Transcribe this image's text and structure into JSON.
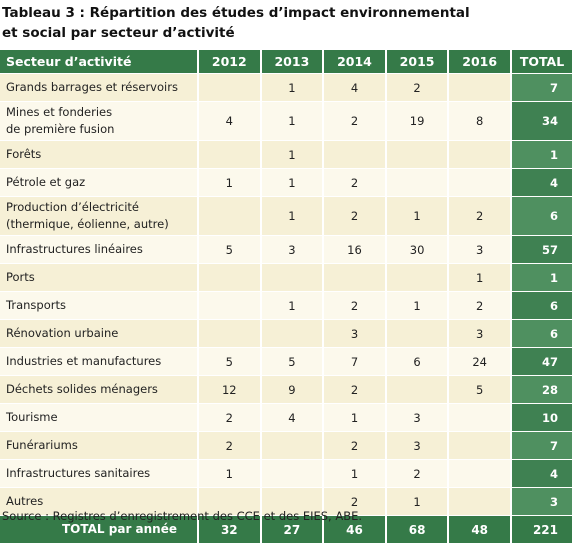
{
  "title": "Tableau 3 : Répartition des études d’impact environnemental\net social par secteur d’activité",
  "table": {
    "header": [
      "Secteur d’activité",
      "2012",
      "2013",
      "2014",
      "2015",
      "2016",
      "TOTAL"
    ],
    "rows": [
      [
        "Grands barrages et réservoirs",
        null,
        1,
        4,
        2,
        null,
        7
      ],
      [
        "Mines et fonderies\nde première fusion",
        4,
        1,
        2,
        19,
        8,
        34
      ],
      [
        "Forêts",
        null,
        1,
        null,
        null,
        null,
        1
      ],
      [
        "Pétrole et gaz",
        1,
        1,
        2,
        null,
        null,
        4
      ],
      [
        "Production d’électricité\n(thermique, éolienne, autre)",
        null,
        1,
        2,
        1,
        2,
        6
      ],
      [
        "Infrastructures linéaires",
        5,
        3,
        16,
        30,
        3,
        57
      ],
      [
        "Ports",
        null,
        null,
        null,
        null,
        1,
        1
      ],
      [
        "Transports",
        null,
        1,
        2,
        1,
        2,
        6
      ],
      [
        "Rénovation urbaine",
        null,
        null,
        3,
        null,
        3,
        6
      ],
      [
        "Industries et manufactures",
        5,
        5,
        7,
        6,
        24,
        47
      ],
      [
        "Déchets solides ménagers",
        12,
        9,
        2,
        null,
        5,
        28
      ],
      [
        "Tourisme",
        2,
        4,
        1,
        3,
        null,
        10
      ],
      [
        "Funérariums",
        2,
        null,
        2,
        3,
        null,
        7
      ],
      [
        "Infrastructures sanitaires",
        1,
        null,
        1,
        2,
        null,
        4
      ],
      [
        "Autres",
        null,
        null,
        2,
        1,
        null,
        3
      ]
    ],
    "footer": [
      "TOTAL par année",
      32,
      27,
      46,
      68,
      48,
      221
    ]
  },
  "source": "Source : Registres d’enregistrement des CCE et des EIES, ABE."
}
